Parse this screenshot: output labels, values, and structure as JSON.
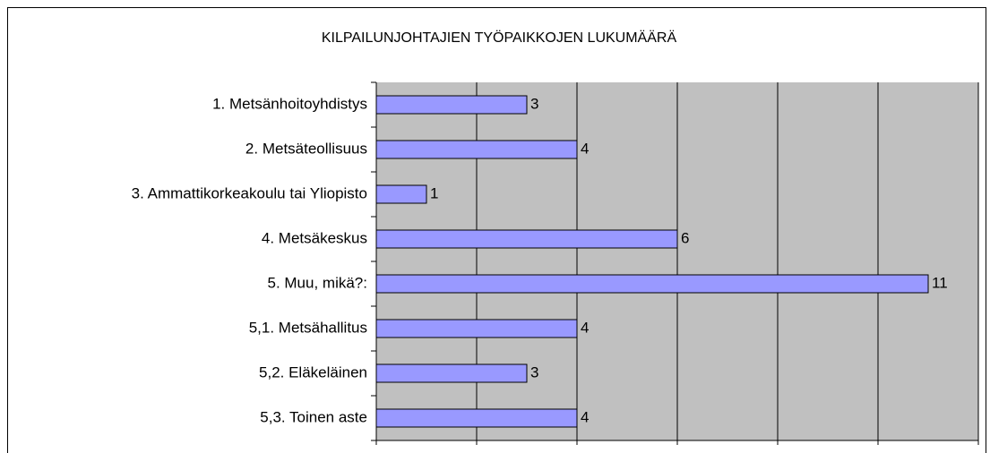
{
  "chart_data": {
    "type": "bar",
    "orientation": "horizontal",
    "title": "KILPAILUNJOHTAJIEN TYÖPAIKKOJEN LUKUMÄÄRÄ",
    "categories": [
      "1. Metsänhoitoyhdistys",
      "2. Metsäteollisuus",
      "3. Ammattikorkeakoulu tai Yliopisto",
      "4. Metsäkeskus",
      "5. Muu, mikä?:",
      "5,1. Metsähallitus",
      "5,2. Eläkeläinen",
      "5,3. Toinen aste"
    ],
    "values": [
      3,
      4,
      1,
      6,
      11,
      4,
      3,
      4
    ],
    "color": "#9999ff",
    "xlim": [
      0,
      12
    ],
    "xticks": [
      0,
      2,
      4,
      6,
      8,
      10,
      12
    ],
    "grid": true
  }
}
